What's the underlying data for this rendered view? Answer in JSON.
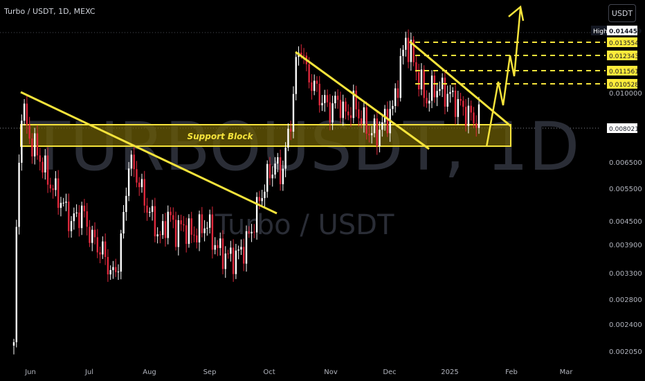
{
  "header": {
    "symbol_title": "Turbo / USDT, 1D, MEXC",
    "currency_button": "USDT"
  },
  "watermark": {
    "ticker": "TURBOUSDT, 1D",
    "pair": "Turbo / USDT"
  },
  "colors": {
    "background": "#000000",
    "bull": "#ffffff",
    "bear": "#e0283c",
    "annotation": "#f5e33b",
    "zone_fill": "#6b5c05",
    "axis_text": "#b2b5be",
    "label_yellow": "#ffeb3b",
    "label_dark": "#131722"
  },
  "chart_data": {
    "type": "candlestick",
    "title": "Turbo / USDT, 1D, MEXC",
    "scale": "log",
    "x_tick_labels": [
      "Jun",
      "Jul",
      "Aug",
      "Sep",
      "Oct",
      "Nov",
      "Dec",
      "2025",
      "Feb",
      "Mar"
    ],
    "y_tick_labels": [
      "0.010000",
      "0.006500",
      "0.005500",
      "0.004500",
      "0.003900",
      "0.003300",
      "0.002800",
      "0.002400",
      "0.002050"
    ],
    "ylim": [
      0.00195,
      0.0156
    ],
    "high_label": {
      "text": "High",
      "value": "0.014459"
    },
    "level_labels": [
      "0.013554",
      "0.012343",
      "0.011561",
      "0.010528"
    ],
    "last_price": "0.008021",
    "annotations": {
      "support_block_label": "Support Block"
    },
    "ohlc_path": [
      [
        0,
        0.0021
      ],
      [
        1,
        0.0042
      ],
      [
        3,
        0.0088
      ],
      [
        6,
        0.0072
      ],
      [
        10,
        0.0064
      ],
      [
        14,
        0.0055
      ],
      [
        18,
        0.005
      ],
      [
        22,
        0.0044
      ],
      [
        26,
        0.0047
      ],
      [
        30,
        0.004
      ],
      [
        34,
        0.0037
      ],
      [
        38,
        0.0032
      ],
      [
        40,
        0.0035
      ],
      [
        42,
        0.0045
      ],
      [
        44,
        0.0063
      ],
      [
        47,
        0.0058
      ],
      [
        50,
        0.005
      ],
      [
        53,
        0.0045
      ],
      [
        56,
        0.004
      ],
      [
        59,
        0.0046
      ],
      [
        62,
        0.0042
      ],
      [
        65,
        0.0043
      ],
      [
        68,
        0.0041
      ],
      [
        71,
        0.0042
      ],
      [
        74,
        0.0044
      ],
      [
        76,
        0.004
      ],
      [
        79,
        0.0037
      ],
      [
        82,
        0.0036
      ],
      [
        85,
        0.0036
      ],
      [
        88,
        0.0038
      ],
      [
        91,
        0.0042
      ],
      [
        94,
        0.005
      ],
      [
        97,
        0.0057
      ],
      [
        100,
        0.0062
      ],
      [
        102,
        0.0058
      ],
      [
        104,
        0.0066
      ],
      [
        106,
        0.008
      ],
      [
        108,
        0.011
      ],
      [
        110,
        0.0125
      ],
      [
        112,
        0.0105
      ],
      [
        115,
        0.0097
      ],
      [
        118,
        0.009
      ],
      [
        121,
        0.0085
      ],
      [
        124,
        0.009
      ],
      [
        127,
        0.0082
      ],
      [
        130,
        0.0088
      ],
      [
        133,
        0.0081
      ],
      [
        136,
        0.0075
      ],
      [
        139,
        0.0074
      ],
      [
        142,
        0.008
      ],
      [
        145,
        0.0085
      ],
      [
        148,
        0.011
      ],
      [
        150,
        0.0128
      ],
      [
        152,
        0.0118
      ],
      [
        155,
        0.0102
      ],
      [
        158,
        0.009
      ],
      [
        161,
        0.0097
      ],
      [
        164,
        0.0095
      ],
      [
        167,
        0.0092
      ],
      [
        170,
        0.0088
      ],
      [
        173,
        0.0084
      ],
      [
        176,
        0.008
      ],
      [
        178,
        0.0082
      ]
    ]
  }
}
